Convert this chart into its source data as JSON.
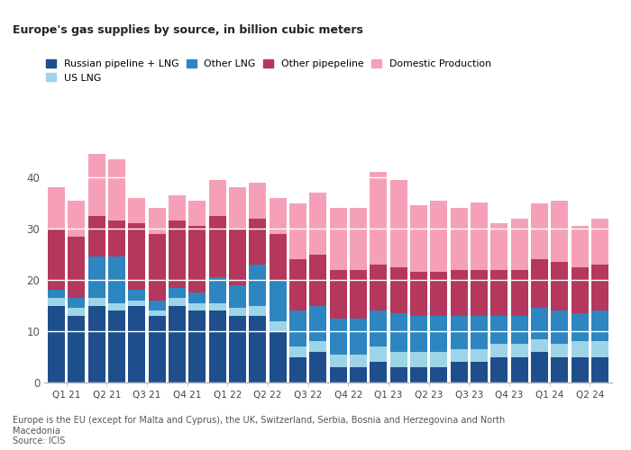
{
  "categories": [
    "Q1 21",
    "",
    "Q2 21",
    "",
    "Q3 21",
    "",
    "Q4 21",
    "",
    "Q1 22",
    "",
    "Q2 22",
    "",
    "Q3 22",
    "",
    "Q4 22",
    "",
    "Q1 23",
    "",
    "Q2 23",
    "",
    "Q3 23",
    "",
    "Q4 23",
    "",
    "Q1 24",
    "",
    "Q2 24",
    ""
  ],
  "xtick_labels": [
    "Q1 21",
    "Q2 21",
    "Q3 21",
    "Q4 21",
    "Q1 22",
    "Q2 22",
    "Q3 22",
    "Q4 22",
    "Q1 23",
    "Q2 23",
    "Q3 23",
    "Q4 23",
    "Q1 24",
    "Q2 24"
  ],
  "xtick_positions": [
    0.5,
    2.5,
    4.5,
    6.5,
    8.5,
    10.5,
    12.5,
    14.5,
    16.5,
    18.5,
    20.5,
    22.5,
    24.5,
    26.5
  ],
  "russian_pipeline_lng": [
    15,
    13,
    15,
    14,
    15,
    13,
    15,
    14,
    14,
    13,
    13,
    10,
    5,
    6,
    3,
    3,
    4,
    3,
    3,
    3,
    4,
    4,
    5,
    5,
    6,
    5,
    5,
    5
  ],
  "us_lng": [
    1.5,
    1.5,
    1.5,
    1.5,
    1.0,
    1.0,
    1.5,
    1.5,
    1.5,
    1.5,
    2.0,
    2.0,
    2.0,
    2.0,
    2.5,
    2.5,
    3.0,
    3.0,
    3.0,
    3.0,
    2.5,
    2.5,
    2.5,
    2.5,
    2.5,
    2.5,
    3.0,
    3.0
  ],
  "other_lng": [
    1.5,
    2.0,
    8.0,
    9.0,
    2.0,
    2.0,
    2.0,
    2.0,
    5.0,
    4.5,
    8.0,
    8.0,
    7.0,
    7.0,
    7.0,
    7.0,
    7.0,
    7.5,
    7.0,
    7.0,
    6.5,
    6.5,
    5.5,
    5.5,
    6.0,
    6.5,
    5.5,
    6.0
  ],
  "other_pipeline": [
    12,
    12,
    8,
    7,
    13,
    13,
    13,
    13,
    12,
    11,
    9,
    9,
    10,
    10,
    9.5,
    9.5,
    9,
    9,
    8.5,
    8.5,
    9,
    9,
    9,
    9,
    9.5,
    9.5,
    9,
    9
  ],
  "domestic_production": [
    8,
    7,
    12,
    12,
    5,
    5,
    5,
    5,
    7,
    8,
    7,
    7,
    11,
    12,
    12,
    12,
    18,
    17,
    13,
    14,
    12,
    13,
    9,
    10,
    11,
    12,
    8,
    9
  ],
  "colors": {
    "russian_pipeline_lng": "#1f4e8c",
    "us_lng": "#9dd4e8",
    "other_lng": "#2e86c1",
    "other_pipeline": "#b5375e",
    "domestic_production": "#f5a0b8"
  },
  "title": "Europe's gas supplies by source, in billion cubic meters",
  "ylim": [
    0,
    50
  ],
  "yticks": [
    0,
    10,
    20,
    30,
    40
  ],
  "footnote1": "Europe is the EU (except for Malta and Cyprus), the UK, Switzerland, Serbia, Bosnia and Herzegovina and North",
  "footnote2": "Macedonia",
  "footnote3": "Source: ICIS",
  "legend_labels": [
    "Russian pipeline + LNG",
    "US LNG",
    "Other LNG",
    "Other pipepeline",
    "Domestic Production"
  ]
}
